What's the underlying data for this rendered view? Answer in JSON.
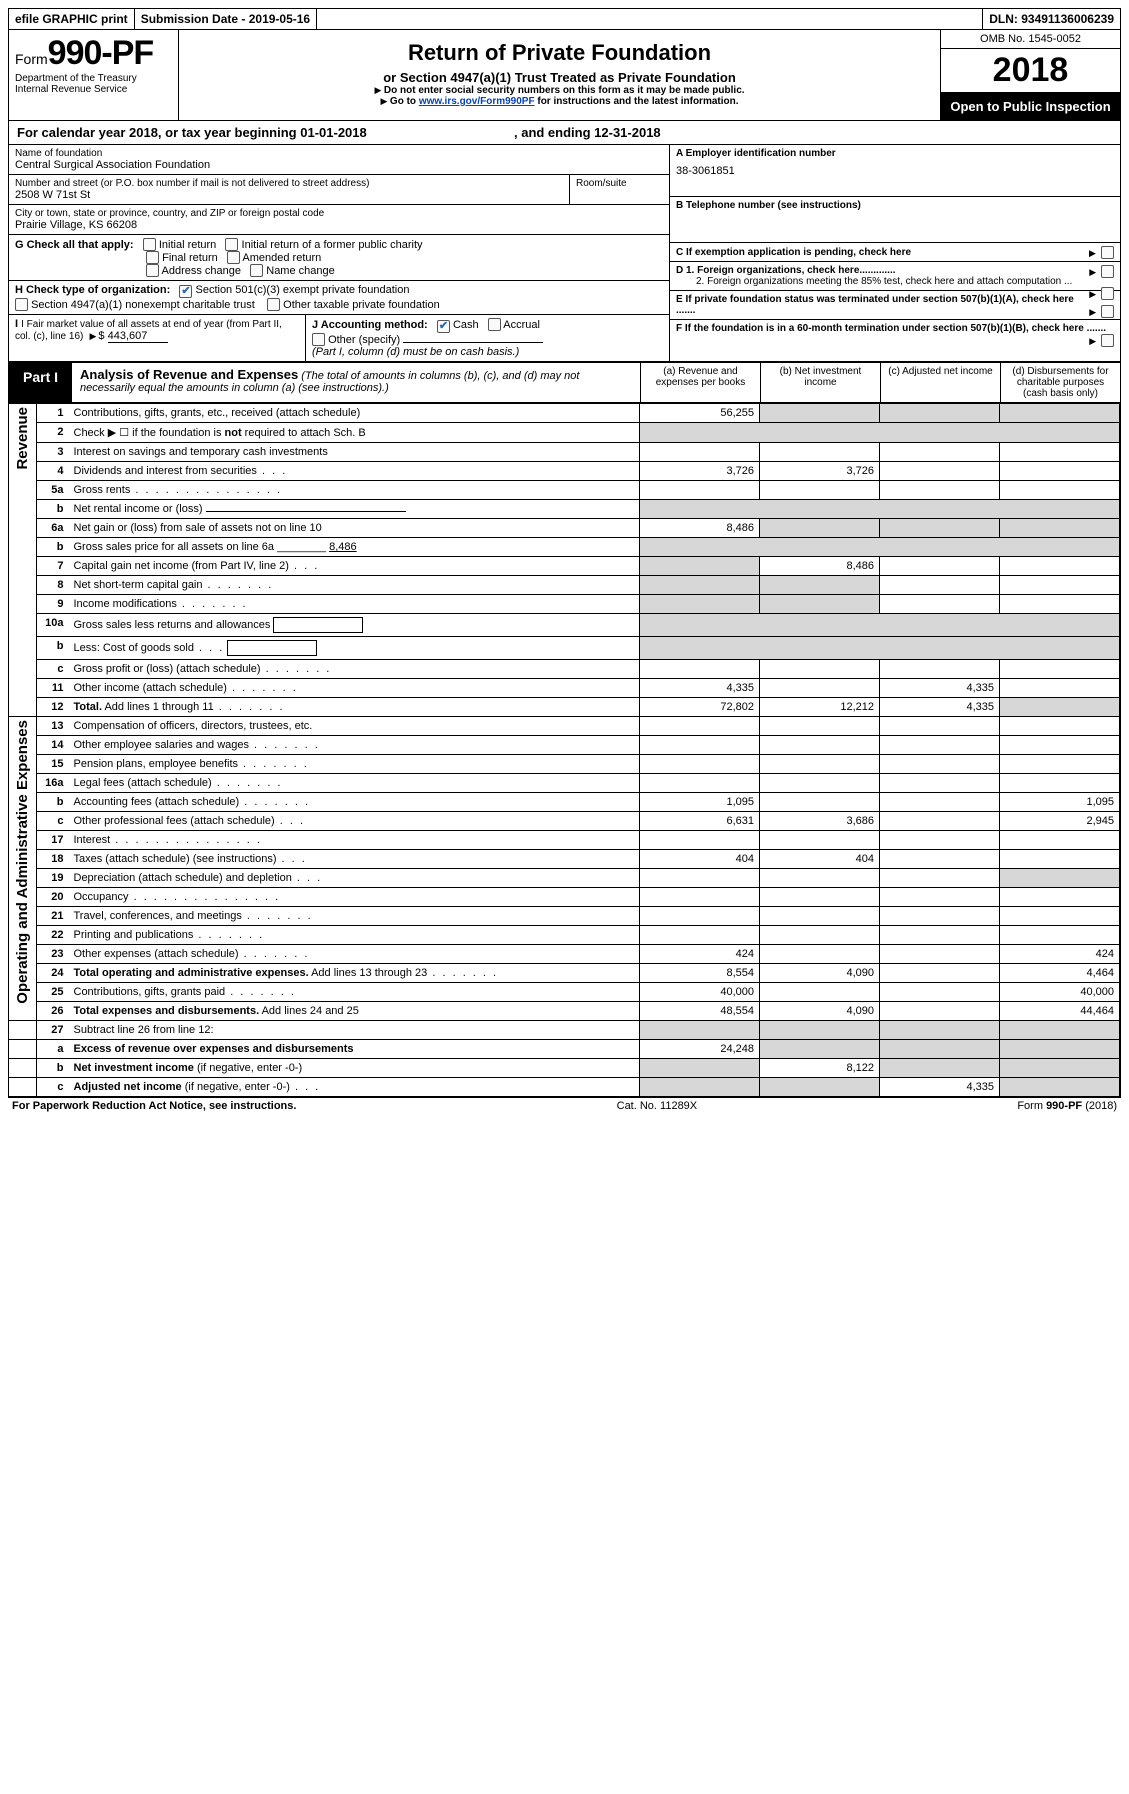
{
  "topbar": {
    "efile": "efile GRAPHIC print",
    "subdate_label": "Submission Date - ",
    "subdate": "2019-05-16",
    "dln_label": "DLN: ",
    "dln": "93491136006239"
  },
  "header": {
    "form_prefix": "Form",
    "form_no": "990-PF",
    "dept": "Department of the Treasury",
    "irs": "Internal Revenue Service",
    "title": "Return of Private Foundation",
    "subtitle": "or Section 4947(a)(1) Trust Treated as Private Foundation",
    "warn": "Do not enter social security numbers on this form as it may be made public.",
    "goto_pre": "Go to ",
    "goto_link": "www.irs.gov/Form990PF",
    "goto_post": " for instructions and the latest information.",
    "omb": "OMB No. 1545-0052",
    "year": "2018",
    "open": "Open to Public Inspection"
  },
  "calyear": {
    "pre": "For calendar year 2018, or tax year beginning ",
    "begin": "01-01-2018",
    "mid": " , and ending ",
    "end": "12-31-2018"
  },
  "id": {
    "name_lbl": "Name of foundation",
    "name": "Central Surgical Association Foundation",
    "addr_lbl": "Number and street (or P.O. box number if mail is not delivered to street address)",
    "addr": "2508 W 71st St",
    "room_lbl": "Room/suite",
    "city_lbl": "City or town, state or province, country, and ZIP or foreign postal code",
    "city": "Prairie Village, KS  66208",
    "A_lbl": "A Employer identification number",
    "A_val": "38-3061851",
    "B_lbl": "B Telephone number (see instructions)",
    "C_lbl": "C If exemption application is pending, check here",
    "G_lbl": "G Check all that apply:",
    "G_opts": [
      "Initial return",
      "Initial return of a former public charity",
      "Final return",
      "Amended return",
      "Address change",
      "Name change"
    ],
    "D1": "D 1. Foreign organizations, check here.............",
    "D2": "2. Foreign organizations meeting the 85% test, check here and attach computation ...",
    "E": "E  If private foundation status was terminated under section 507(b)(1)(A), check here .......",
    "F": "F  If the foundation is in a 60-month termination under section 507(b)(1)(B), check here .......",
    "H_lbl": "H Check type of organization:",
    "H1": "Section 501(c)(3) exempt private foundation",
    "H2": "Section 4947(a)(1) nonexempt charitable trust",
    "H3": "Other taxable private foundation",
    "I_lbl": "I Fair market value of all assets at end of year (from Part II, col. (c), line 16)",
    "I_val": "443,607",
    "J_lbl": "J Accounting method:",
    "J_cash": "Cash",
    "J_acc": "Accrual",
    "J_other": "Other (specify)",
    "J_note": "(Part I, column (d) must be on cash basis.)"
  },
  "part1": {
    "tag": "Part I",
    "title": "Analysis of Revenue and Expenses",
    "note": "(The total of amounts in columns (b), (c), and (d) may not necessarily equal the amounts in column (a) (see instructions).)",
    "cols": {
      "a": "(a)   Revenue and expenses per books",
      "b": "(b)   Net investment income",
      "c": "(c)   Adjusted net income",
      "d": "(d)   Disbursements for charitable purposes (cash basis only)"
    }
  },
  "sections": {
    "rev": "Revenue",
    "exp": "Operating and Administrative Expenses"
  },
  "rows": [
    {
      "n": "1",
      "d": "Contributions, gifts, grants, etc., received (attach schedule)",
      "a": "56,255",
      "ds": true,
      "sb": true,
      "sc": true
    },
    {
      "n": "2",
      "d": "Check ▶ ☐ if the foundation is <b>not</b> required to attach Sch. B",
      "nocols": true
    },
    {
      "n": "3",
      "d": "Interest on savings and temporary cash investments"
    },
    {
      "n": "4",
      "d": "Dividends and interest from securities",
      "a": "3,726",
      "b": "3,726",
      "dots": "xs"
    },
    {
      "n": "5a",
      "d": "Gross rents",
      "dots": "l"
    },
    {
      "n": "b",
      "d": "Net rental income or (loss)",
      "nocols": true,
      "uline": true
    },
    {
      "n": "6a",
      "d": "Net gain or (loss) from sale of assets not on line 10",
      "a": "8,486",
      "sb": true,
      "sc": true,
      "ds": true
    },
    {
      "n": "b",
      "d": "Gross sales price for all assets on line 6a ________ <u>8,486</u>",
      "nocols": true
    },
    {
      "n": "7",
      "d": "Capital gain net income (from Part IV, line 2)",
      "b": "8,486",
      "sa": true,
      "dots": "xs"
    },
    {
      "n": "8",
      "d": "Net short-term capital gain",
      "sa": true,
      "sb": true,
      "dots": "s"
    },
    {
      "n": "9",
      "d": "Income modifications",
      "sa": true,
      "sb": true,
      "dots": "s"
    },
    {
      "n": "10a",
      "d": "Gross sales less returns and allowances",
      "nocols": true,
      "box": true
    },
    {
      "n": "b",
      "d": "Less: Cost of goods sold",
      "nocols": true,
      "box": true,
      "dots": "xs"
    },
    {
      "n": "c",
      "d": "Gross profit or (loss) (attach schedule)",
      "dots": "s"
    },
    {
      "n": "11",
      "d": "Other income (attach schedule)",
      "a": "4,335",
      "c": "4,335",
      "dots": "s"
    },
    {
      "n": "12",
      "d": "<b>Total.</b> Add lines 1 through 11",
      "a": "72,802",
      "b": "12,212",
      "c": "4,335",
      "ds": true,
      "dots": "s"
    },
    {
      "sec": "exp"
    },
    {
      "n": "13",
      "d": "Compensation of officers, directors, trustees, etc."
    },
    {
      "n": "14",
      "d": "Other employee salaries and wages",
      "dots": "s"
    },
    {
      "n": "15",
      "d": "Pension plans, employee benefits",
      "dots": "s"
    },
    {
      "n": "16a",
      "d": "Legal fees (attach schedule)",
      "dots": "s"
    },
    {
      "n": "b",
      "d": "Accounting fees (attach schedule)",
      "a": "1,095",
      "dd": "1,095",
      "dots": "s"
    },
    {
      "n": "c",
      "d": "Other professional fees (attach schedule)",
      "a": "6,631",
      "b": "3,686",
      "dd": "2,945",
      "dots": "xs"
    },
    {
      "n": "17",
      "d": "Interest",
      "dots": "l"
    },
    {
      "n": "18",
      "d": "Taxes (attach schedule) (see instructions)",
      "a": "404",
      "b": "404",
      "dots": "xs"
    },
    {
      "n": "19",
      "d": "Depreciation (attach schedule) and depletion",
      "ds": true,
      "dots": "xs"
    },
    {
      "n": "20",
      "d": "Occupancy",
      "dots": "l"
    },
    {
      "n": "21",
      "d": "Travel, conferences, and meetings",
      "dots": "s"
    },
    {
      "n": "22",
      "d": "Printing and publications",
      "dots": "s"
    },
    {
      "n": "23",
      "d": "Other expenses (attach schedule)",
      "a": "424",
      "dd": "424",
      "dots": "s"
    },
    {
      "n": "24",
      "d": "<b>Total operating and administrative expenses.</b> Add lines 13 through 23",
      "a": "8,554",
      "b": "4,090",
      "dd": "4,464",
      "dots": "s"
    },
    {
      "n": "25",
      "d": "Contributions, gifts, grants paid",
      "a": "40,000",
      "dd": "40,000",
      "dots": "s"
    },
    {
      "n": "26",
      "d": "<b>Total expenses and disbursements.</b> Add lines 24 and 25",
      "a": "48,554",
      "b": "4,090",
      "dd": "44,464"
    },
    {
      "sec": "end"
    },
    {
      "n": "27",
      "d": "Subtract line 26 from line 12:",
      "sa": true,
      "sb": true,
      "sc": true,
      "ds": true
    },
    {
      "n": "a",
      "d": "<b>Excess of revenue over expenses and disbursements</b>",
      "a": "24,248",
      "sb": true,
      "sc": true,
      "ds": true
    },
    {
      "n": "b",
      "d": "<b>Net investment income</b> (if negative, enter -0-)",
      "b": "8,122",
      "sa": true,
      "sc": true,
      "ds": true
    },
    {
      "n": "c",
      "d": "<b>Adjusted net income</b> (if negative, enter -0-)",
      "c": "4,335",
      "sa": true,
      "sb": true,
      "ds": true,
      "dots": "xs"
    }
  ],
  "footer": {
    "left": "For Paperwork Reduction Act Notice, see instructions.",
    "mid": "Cat. No. 11289X",
    "right_pre": "Form ",
    "right_b": "990-PF",
    "right_post": " (2018)"
  }
}
